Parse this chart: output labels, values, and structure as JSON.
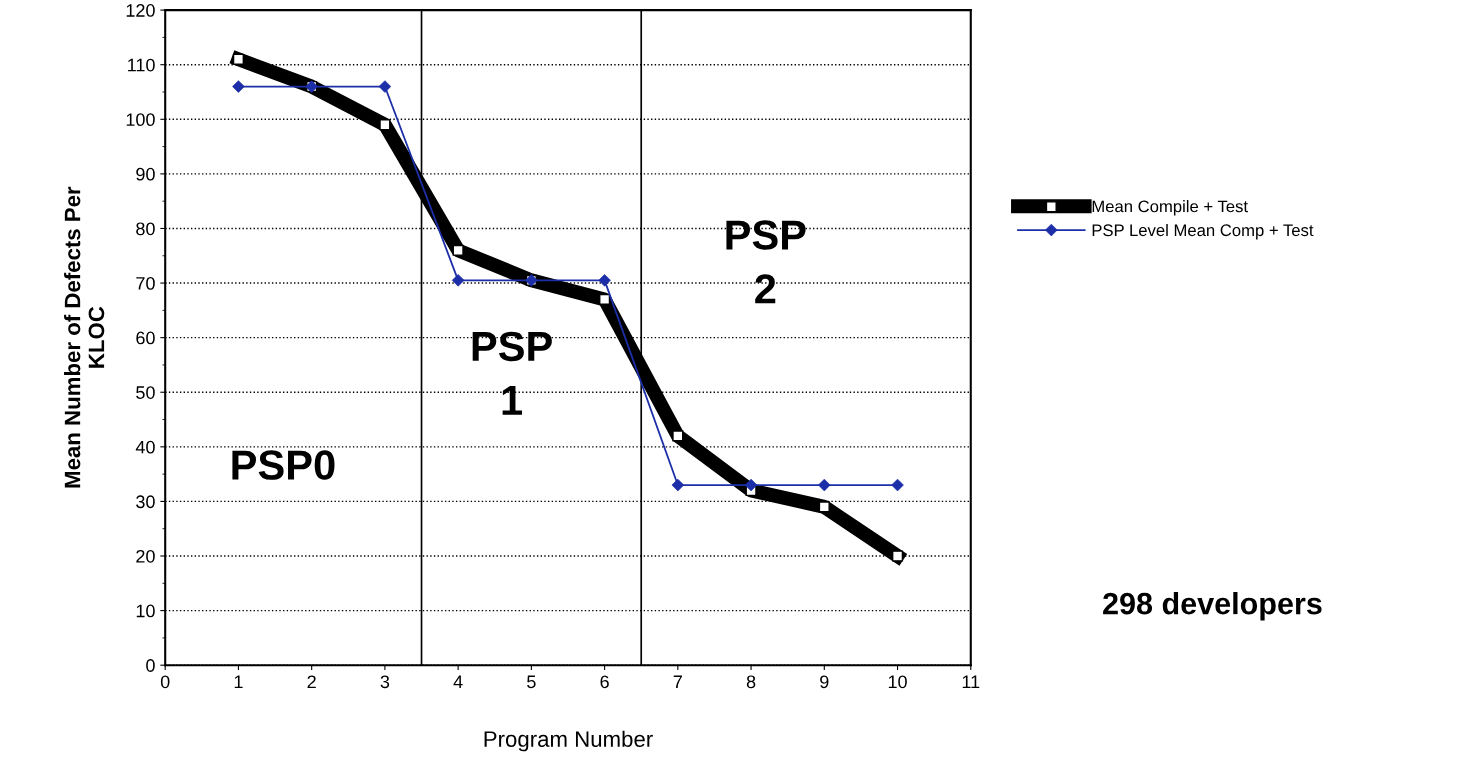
{
  "chart_data": {
    "type": "line",
    "xlabel": "Program Number",
    "ylabel": "Mean Number of Defects Per\nKLOC",
    "x": [
      1,
      2,
      3,
      4,
      5,
      6,
      7,
      8,
      9,
      10
    ],
    "series": [
      {
        "name": "Mean Compile + Test",
        "color": "#000000",
        "marker": "square",
        "values": [
          111,
          106,
          99,
          76,
          70.5,
          67,
          42,
          32,
          29,
          20
        ]
      },
      {
        "name": "PSP Level Mean Comp + Test",
        "color": "#1c2fa8",
        "marker": "diamond",
        "values": [
          106,
          106,
          106,
          70.5,
          70.5,
          70.5,
          33,
          33,
          33,
          33
        ]
      }
    ],
    "xlim": [
      0,
      11
    ],
    "xticks": [
      0,
      1,
      2,
      3,
      4,
      5,
      6,
      7,
      8,
      9,
      10,
      11
    ],
    "ylim": [
      0,
      120
    ],
    "yticks": [
      0,
      10,
      20,
      30,
      40,
      50,
      60,
      70,
      80,
      90,
      100,
      110,
      120
    ],
    "grid": "y",
    "legend": "right",
    "line_style": "solid",
    "ref_lines": [
      {
        "axis": "x",
        "value": 3.5,
        "color": "#000000"
      },
      {
        "axis": "x",
        "value": 6.5,
        "color": "#000000"
      }
    ],
    "annotations": [
      "PSP0",
      "PSP\n1",
      "PSP\n2",
      "298 developers"
    ]
  }
}
